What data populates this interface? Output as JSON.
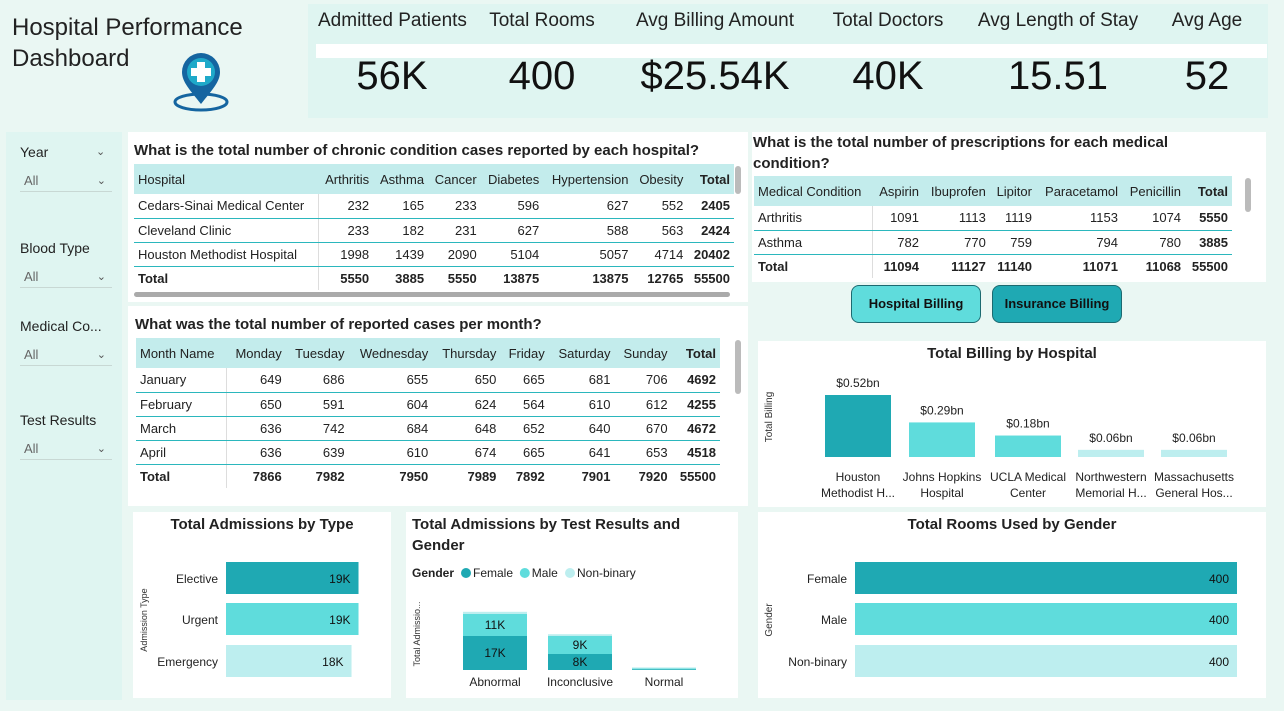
{
  "header": {
    "title_line1": "Hospital Performance",
    "title_line2": "Dashboard",
    "logo_icon": "hospital-location-pin-icon"
  },
  "kpis": [
    {
      "label": "Admitted Patients",
      "value": "56K"
    },
    {
      "label": "Total Rooms",
      "value": "400"
    },
    {
      "label": "Avg Billing Amount",
      "value": "$25.54K"
    },
    {
      "label": "Total Doctors",
      "value": "40K"
    },
    {
      "label": "Avg Length of Stay",
      "value": "15.51"
    },
    {
      "label": "Avg Age",
      "value": "52"
    }
  ],
  "slicers": [
    {
      "label": "Year",
      "value": "All"
    },
    {
      "label": "Blood Type",
      "value": "All"
    },
    {
      "label": "Medical Co...",
      "value": "All"
    },
    {
      "label": "Test Results",
      "value": "All"
    }
  ],
  "chronic_table": {
    "title": "What is the total number of chronic condition cases reported by each hospital?",
    "headers": [
      "Hospital",
      "Arthritis",
      "Asthma",
      "Cancer",
      "Diabetes",
      "Hypertension",
      "Obesity",
      "Total"
    ],
    "rows": [
      [
        "Cedars-Sinai Medical Center",
        "232",
        "165",
        "233",
        "596",
        "627",
        "552",
        "2405"
      ],
      [
        "Cleveland Clinic",
        "233",
        "182",
        "231",
        "627",
        "588",
        "563",
        "2424"
      ],
      [
        "Houston Methodist Hospital",
        "1998",
        "1439",
        "2090",
        "5104",
        "5057",
        "4714",
        "20402"
      ]
    ],
    "total": [
      "Total",
      "5550",
      "3885",
      "5550",
      "13875",
      "13875",
      "12765",
      "55500"
    ]
  },
  "prescription_table": {
    "title": "What is the total number of prescriptions for each medical condition?",
    "headers": [
      "Medical Condition",
      "Aspirin",
      "Ibuprofen",
      "Lipitor",
      "Paracetamol",
      "Penicillin",
      "Total"
    ],
    "rows": [
      [
        "Arthritis",
        "1091",
        "1113",
        "1119",
        "1153",
        "1074",
        "5550"
      ],
      [
        "Asthma",
        "782",
        "770",
        "759",
        "794",
        "780",
        "3885"
      ]
    ],
    "total": [
      "Total",
      "11094",
      "11127",
      "11140",
      "11071",
      "11068",
      "55500"
    ]
  },
  "monthly_table": {
    "title": "What was the total number of reported cases per month?",
    "headers": [
      "Month Name",
      "Monday",
      "Tuesday",
      "Wednesday",
      "Thursday",
      "Friday",
      "Saturday",
      "Sunday",
      "Total"
    ],
    "rows": [
      [
        "January",
        "649",
        "686",
        "655",
        "650",
        "665",
        "681",
        "706",
        "4692"
      ],
      [
        "February",
        "650",
        "591",
        "604",
        "624",
        "564",
        "610",
        "612",
        "4255"
      ],
      [
        "March",
        "636",
        "742",
        "684",
        "648",
        "652",
        "640",
        "670",
        "4672"
      ],
      [
        "April",
        "636",
        "639",
        "610",
        "674",
        "665",
        "641",
        "653",
        "4518"
      ]
    ],
    "total": [
      "Total",
      "7866",
      "7982",
      "7950",
      "7989",
      "7892",
      "7901",
      "7920",
      "55500"
    ]
  },
  "buttons": {
    "hospital_billing": "Hospital Billing",
    "insurance_billing": "Insurance Billing"
  },
  "colors": {
    "dark_teal": "#1fa9b3",
    "teal": "#5fdcdc",
    "light_teal": "#bdeeef",
    "header_fill": "#c3ecec",
    "btn_hospital": "#5fdcdc",
    "btn_insurance": "#1fa9b3"
  },
  "chart_data": [
    {
      "type": "bar",
      "title": "Total Billing by Hospital",
      "ylabel": "Total Billing",
      "categories_line1": [
        "Houston",
        "Johns Hopkins",
        "UCLA Medical",
        "Northwestern",
        "Massachusetts"
      ],
      "categories_line2": [
        "Methodist H...",
        "Hospital",
        "Center",
        "Memorial H...",
        "General Hos..."
      ],
      "values": [
        0.52,
        0.29,
        0.18,
        0.06,
        0.06
      ],
      "labels": [
        "$0.52bn",
        "$0.29bn",
        "$0.18bn",
        "$0.06bn",
        "$0.06bn"
      ],
      "colors": [
        "#1fa9b3",
        "#5fdcdc",
        "#5fdcdc",
        "#bdeeef",
        "#bdeeef"
      ]
    },
    {
      "type": "bar",
      "orientation": "horizontal",
      "title": "Total Admissions by Type",
      "ylabel": "Admission Type",
      "categories": [
        "Elective",
        "Urgent",
        "Emergency"
      ],
      "values": [
        19,
        19,
        18
      ],
      "labels": [
        "19K",
        "19K",
        "18K"
      ],
      "colors": [
        "#1fa9b3",
        "#5fdcdc",
        "#bdeeef"
      ]
    },
    {
      "type": "bar",
      "stacked": true,
      "title_line1": "Total Admissions by Test Results and",
      "title_line2": "Gender",
      "ylabel": "Total Admissio...",
      "legend_title": "Gender",
      "categories": [
        "Abnormal",
        "Inconclusive",
        "Normal"
      ],
      "series": [
        {
          "name": "Female",
          "color": "#1fa9b3",
          "values": [
            17,
            8,
            0.4
          ],
          "labels": [
            "17K",
            "8K",
            ""
          ]
        },
        {
          "name": "Male",
          "color": "#5fdcdc",
          "values": [
            11,
            9,
            0.4
          ],
          "labels": [
            "11K",
            "9K",
            ""
          ]
        },
        {
          "name": "Non-binary",
          "color": "#bdeeef",
          "values": [
            1.1,
            0.9,
            0.5
          ],
          "labels": [
            "",
            "",
            ""
          ]
        }
      ]
    },
    {
      "type": "bar",
      "orientation": "horizontal",
      "title": "Total Rooms Used by Gender",
      "ylabel": "Gender",
      "categories": [
        "Female",
        "Male",
        "Non-binary"
      ],
      "values": [
        400,
        400,
        400
      ],
      "labels": [
        "400",
        "400",
        "400"
      ],
      "colors": [
        "#1fa9b3",
        "#5fdcdc",
        "#bdeeef"
      ]
    }
  ]
}
